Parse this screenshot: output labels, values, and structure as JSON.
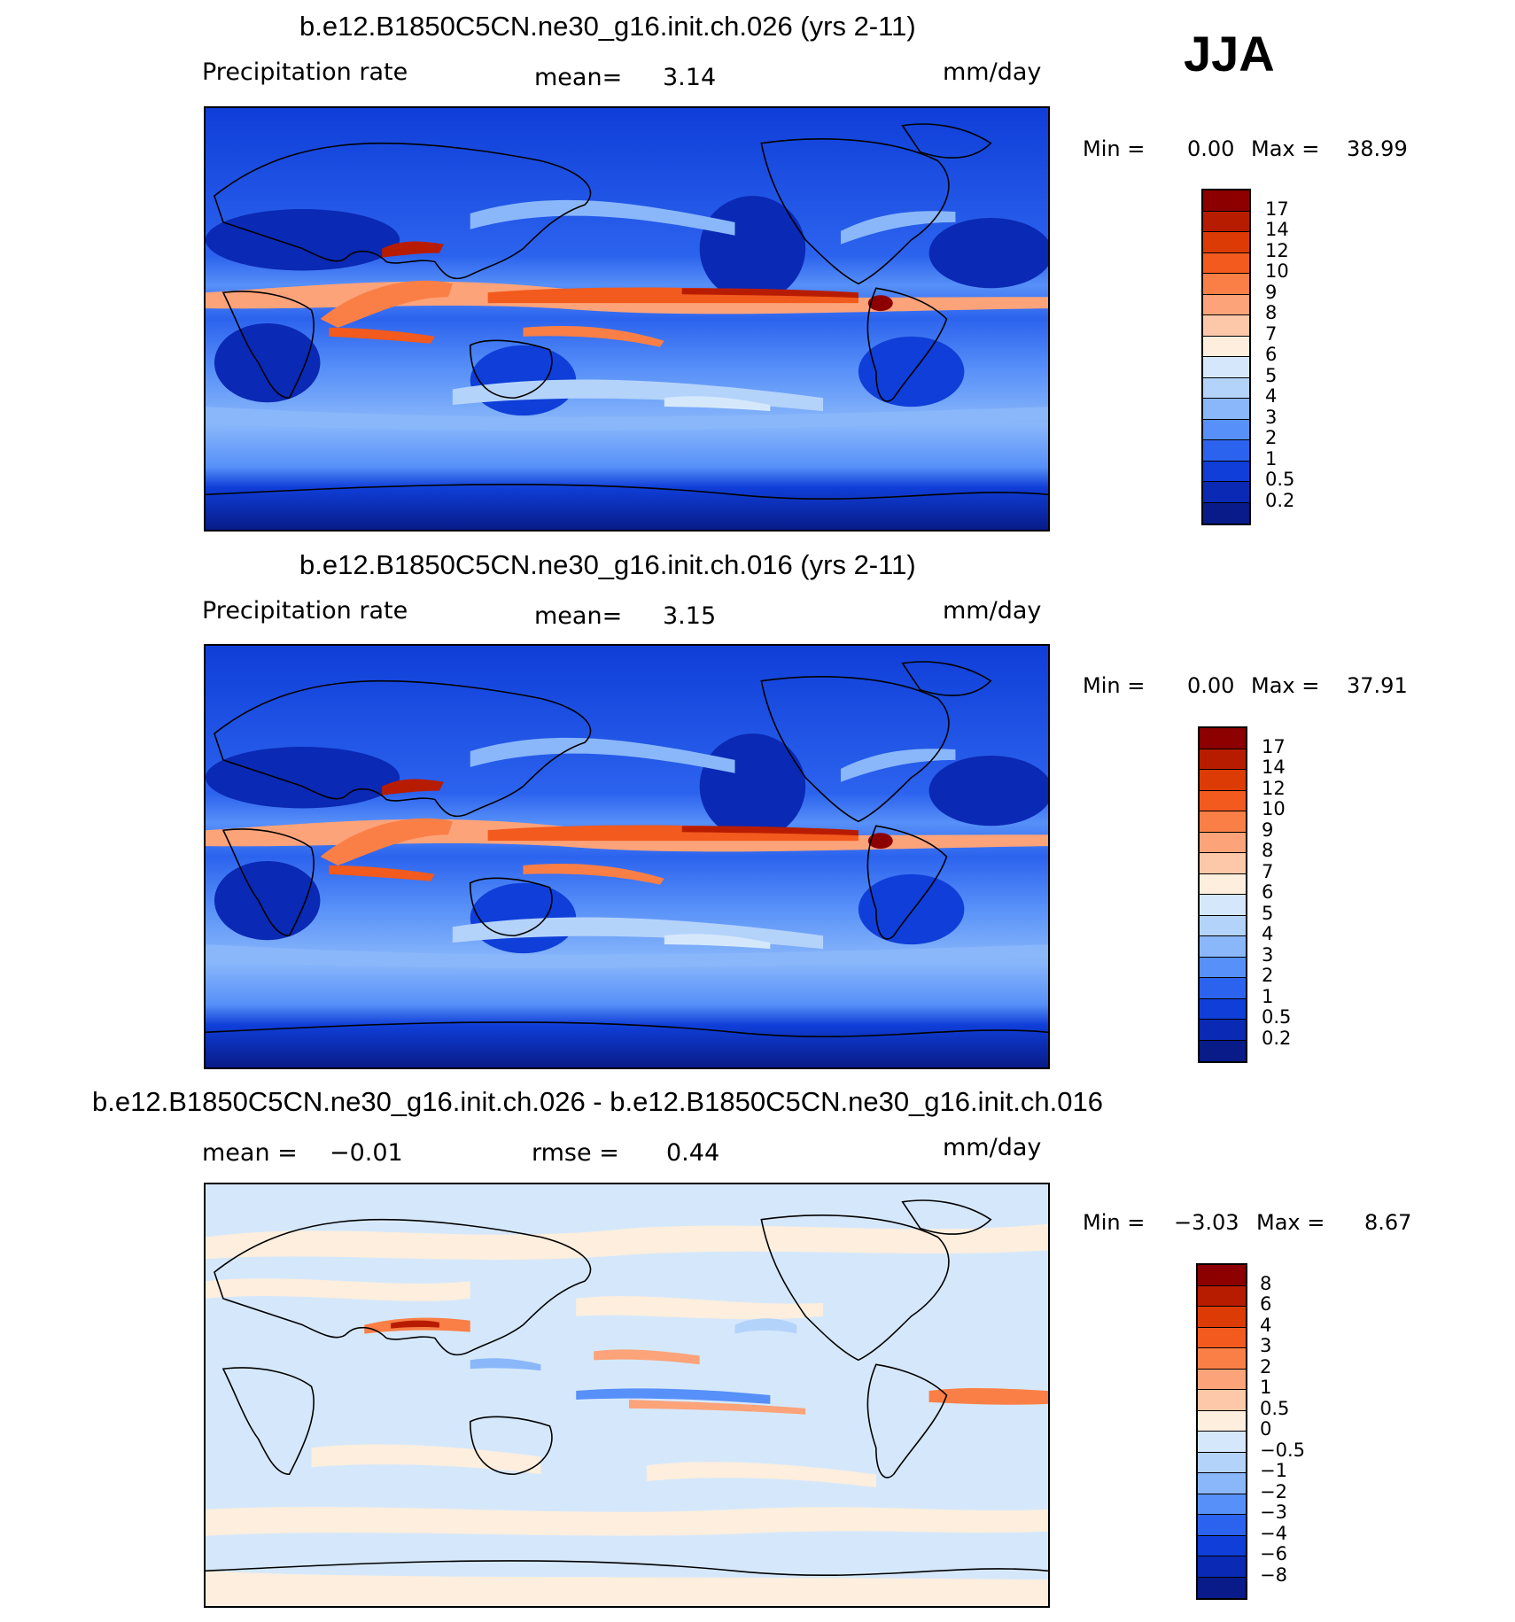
{
  "season": "JJA",
  "chart_data": [
    {
      "type": "heatmap",
      "title": "b.e12.B1850C5CN.ne30_g16.init.ch.026 (yrs 2-11)",
      "variable_label": "Precipitation  rate",
      "mean_label": "mean=",
      "mean_value": "3.14",
      "units": "mm/day",
      "min_label": "Min =",
      "min_value": "0.00",
      "max_label": "Max =",
      "max_value": "38.99",
      "levels": [
        "17",
        "14",
        "12",
        "10",
        "9",
        "8",
        "7",
        "6",
        "5",
        "4",
        "3",
        "2",
        "1",
        "0.5",
        "0.2"
      ],
      "colors": [
        "#8c0000",
        "#b81c00",
        "#dd3b05",
        "#f25a1e",
        "#fa7f46",
        "#fca37a",
        "#fdc8a9",
        "#fdeedd",
        "#d5e8fb",
        "#b4d3fb",
        "#8ab7fa",
        "#5790f8",
        "#2c63ee",
        "#0f3ed8",
        "#0a29b4",
        "#081b88"
      ]
    },
    {
      "type": "heatmap",
      "title": "b.e12.B1850C5CN.ne30_g16.init.ch.016 (yrs 2-11)",
      "variable_label": "Precipitation  rate",
      "mean_label": "mean=",
      "mean_value": "3.15",
      "units": "mm/day",
      "min_label": "Min =",
      "min_value": "0.00",
      "max_label": "Max =",
      "max_value": "37.91",
      "levels": [
        "17",
        "14",
        "12",
        "10",
        "9",
        "8",
        "7",
        "6",
        "5",
        "4",
        "3",
        "2",
        "1",
        "0.5",
        "0.2"
      ],
      "colors": [
        "#8c0000",
        "#b81c00",
        "#dd3b05",
        "#f25a1e",
        "#fa7f46",
        "#fca37a",
        "#fdc8a9",
        "#fdeedd",
        "#d5e8fb",
        "#b4d3fb",
        "#8ab7fa",
        "#5790f8",
        "#2c63ee",
        "#0f3ed8",
        "#0a29b4",
        "#081b88"
      ]
    },
    {
      "type": "heatmap",
      "title": "b.e12.B1850C5CN.ne30_g16.init.ch.026 - b.e12.B1850C5CN.ne30_g16.init.ch.016",
      "mean_label": "mean =",
      "mean_value": "−0.01",
      "rmse_label": "rmse =",
      "rmse_value": "0.44",
      "units": "mm/day",
      "min_label": "Min =",
      "min_value": "−3.03",
      "max_label": "Max =",
      "max_value": "8.67",
      "levels": [
        "8",
        "6",
        "4",
        "3",
        "2",
        "1",
        "0.5",
        "0",
        "−0.5",
        "−1",
        "−2",
        "−3",
        "−4",
        "−6",
        "−8"
      ],
      "colors": [
        "#8c0000",
        "#b81c00",
        "#dd3b05",
        "#f25a1e",
        "#fa7f46",
        "#fca37a",
        "#fdc8a9",
        "#fdeedd",
        "#d5e8fb",
        "#b4d3fb",
        "#8ab7fa",
        "#5790f8",
        "#2c63ee",
        "#0f3ed8",
        "#0a29b4",
        "#081b88"
      ]
    }
  ]
}
